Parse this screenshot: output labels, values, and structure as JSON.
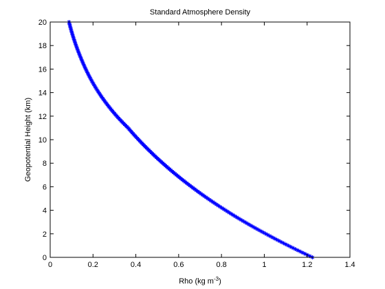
{
  "chart_data": {
    "type": "line",
    "title": "Standard Atmosphere Density",
    "xlabel": "Rho (kg m",
    "xlabel_exponent": "-3",
    "xlabel_suffix": ")",
    "ylabel": "Geopotential Height (km)",
    "xlim": [
      0,
      1.4
    ],
    "ylim": [
      0,
      20
    ],
    "xticks": [
      0,
      0.2,
      0.4,
      0.6,
      0.8,
      1,
      1.2,
      1.4
    ],
    "xtick_labels": [
      "0",
      "0.2",
      "0.4",
      "0.6",
      "0.8",
      "1",
      "1.2",
      "1.4"
    ],
    "yticks": [
      0,
      2,
      4,
      6,
      8,
      10,
      12,
      14,
      16,
      18,
      20
    ],
    "ytick_labels": [
      "0",
      "2",
      "4",
      "6",
      "8",
      "10",
      "12",
      "14",
      "16",
      "18",
      "20"
    ],
    "grid": false,
    "legend": "none",
    "marker": "asterisk",
    "series": [
      {
        "color": "#0000ff",
        "x": [
          1.225,
          1.112,
          1.007,
          0.909,
          0.819,
          0.736,
          0.66,
          0.59,
          0.526,
          0.467,
          0.413,
          0.364,
          0.311,
          0.266,
          0.227,
          0.194,
          0.166,
          0.142,
          0.121,
          0.103,
          0.088
        ],
        "y": [
          0,
          1,
          2,
          3,
          4,
          5,
          6,
          7,
          8,
          9,
          10,
          11,
          12,
          13,
          14,
          15,
          16,
          17,
          18,
          19,
          20
        ]
      }
    ]
  }
}
